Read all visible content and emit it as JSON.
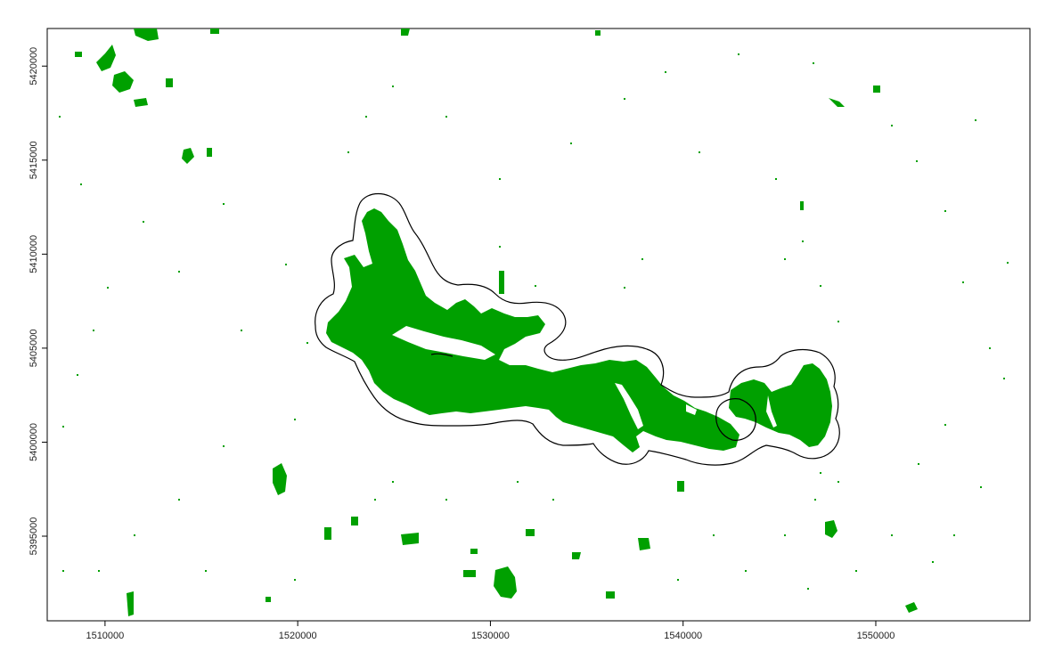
{
  "map": {
    "x_ticks": [
      1510000,
      1520000,
      1530000,
      1540000,
      1550000
    ],
    "y_ticks": [
      5395000,
      5400000,
      5405000,
      5410000,
      5415000,
      5420000
    ],
    "x_tick_labels": [
      "1510000",
      "1520000",
      "1530000",
      "1540000",
      "1550000"
    ],
    "y_tick_labels": [
      "5395000",
      "5400000",
      "5405000",
      "5410000",
      "5415000",
      "5420000"
    ],
    "xlim": [
      1507000,
      1558000
    ],
    "ylim": [
      5390500,
      5422000
    ],
    "colors": {
      "forest_cover": "#00a000",
      "buffer_outline": "#000000",
      "frame": "#000000"
    }
  }
}
